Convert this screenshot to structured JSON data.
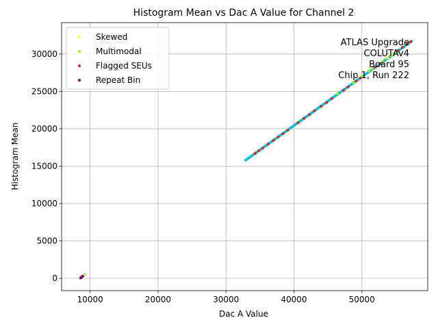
{
  "chart_data": {
    "type": "scatter",
    "title": "Histogram Mean vs Dac A Value for Channel 2",
    "xlabel": "Dac A Value",
    "ylabel": "Histogram Mean",
    "xlim": [
      5800,
      59700
    ],
    "ylim": [
      -1650,
      34200
    ],
    "xticks": [
      10000,
      20000,
      30000,
      40000,
      50000
    ],
    "yticks": [
      0,
      5000,
      10000,
      15000,
      20000,
      25000,
      30000
    ],
    "xtick_labels": [
      "10000",
      "20000",
      "30000",
      "40000",
      "50000"
    ],
    "ytick_labels": [
      "0",
      "5000",
      "10000",
      "15000",
      "20000",
      "25000",
      "30000"
    ],
    "grid": true,
    "legend_position": "top-left",
    "annotation": [
      "ATLAS Upgrade",
      "COLUTAv4",
      "Board 95",
      "Chip 1, Run 222"
    ],
    "base_series": {
      "color": "#17becf",
      "low_cluster": {
        "x": [
          8600,
          9200
        ],
        "y": [
          20,
          470
        ]
      },
      "line": {
        "x": [
          32900,
          57300
        ],
        "y": [
          15800,
          31700
        ]
      }
    },
    "series": [
      {
        "name": "Skewed",
        "color": "#ffff33",
        "points": [
          [
            9100,
            420
          ],
          [
            53800,
            29500
          ],
          [
            54400,
            29900
          ]
        ]
      },
      {
        "name": "Multimodal",
        "color": "#99ff11",
        "points": [
          [
            9100,
            430
          ],
          [
            8950,
            300
          ],
          [
            46400,
            24700
          ],
          [
            48700,
            26200
          ],
          [
            50000,
            27000
          ],
          [
            51000,
            27700
          ],
          [
            51500,
            28000
          ],
          [
            53100,
            29000
          ],
          [
            53700,
            29400
          ],
          [
            54300,
            29800
          ],
          [
            54900,
            30200
          ]
        ]
      },
      {
        "name": "Flagged SEUs",
        "color": "#d62728",
        "points": [
          [
            8600,
            50
          ],
          [
            8750,
            150
          ],
          [
            8850,
            250
          ],
          [
            34300,
            16700
          ],
          [
            34800,
            17050
          ],
          [
            35400,
            17400
          ],
          [
            36200,
            17950
          ],
          [
            37000,
            18450
          ],
          [
            37700,
            18900
          ],
          [
            38400,
            19350
          ],
          [
            39100,
            19800
          ],
          [
            40600,
            20800
          ],
          [
            41500,
            21400
          ],
          [
            42300,
            21900
          ],
          [
            43000,
            22400
          ],
          [
            44000,
            23000
          ],
          [
            44800,
            23500
          ],
          [
            45600,
            24050
          ],
          [
            47300,
            25150
          ],
          [
            48000,
            25600
          ],
          [
            49200,
            26400
          ],
          [
            49800,
            26800
          ],
          [
            52000,
            28250
          ],
          [
            52700,
            28700
          ],
          [
            55300,
            30450
          ],
          [
            56000,
            30900
          ],
          [
            56700,
            31350
          ],
          [
            57200,
            31650
          ]
        ]
      },
      {
        "name": "Repeat Bin",
        "color": "#800080",
        "points": [
          [
            8650,
            80
          ],
          [
            8900,
            270
          ]
        ]
      }
    ]
  }
}
